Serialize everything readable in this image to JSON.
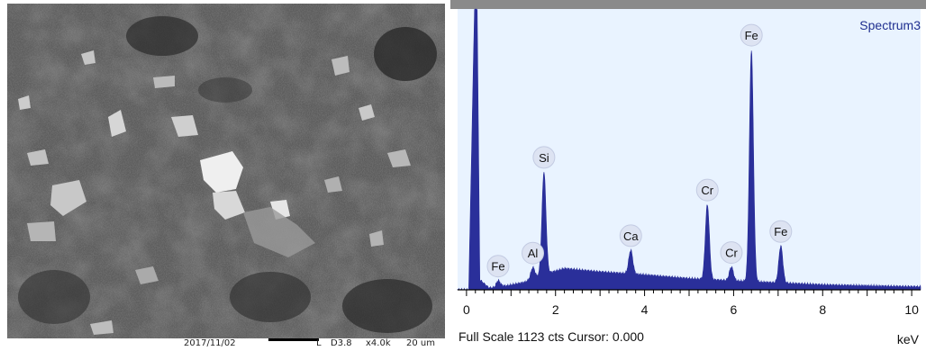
{
  "sem_image": {
    "footer": {
      "date": "2017/11/02",
      "mode": "L",
      "detector": "D3.8",
      "magnification": "x4.0k",
      "scale_label": "20 um"
    }
  },
  "chart_data": {
    "type": "area",
    "title": "Spectrum3",
    "status_text": "Full Scale 1123 cts Cursor: 0.000",
    "xlabel": "keV",
    "xlim": [
      -0.2,
      10.2
    ],
    "ylim": [
      0,
      1123
    ],
    "x_ticks": [
      0,
      2,
      4,
      6,
      8,
      10
    ],
    "fill_color": "#2a2f9a",
    "background_color": "#e9f3ff",
    "background": [
      {
        "x": -0.2,
        "y": 0
      },
      {
        "x": 0.05,
        "y": 0
      },
      {
        "x": 0.18,
        "y": 1123
      },
      {
        "x": 0.24,
        "y": 1123
      },
      {
        "x": 0.3,
        "y": 40
      },
      {
        "x": 0.5,
        "y": 8
      },
      {
        "x": 0.65,
        "y": 8
      },
      {
        "x": 0.7,
        "y": 15
      },
      {
        "x": 0.9,
        "y": 16
      },
      {
        "x": 1.3,
        "y": 30
      },
      {
        "x": 1.7,
        "y": 60
      },
      {
        "x": 2.2,
        "y": 85
      },
      {
        "x": 3.0,
        "y": 72
      },
      {
        "x": 4.0,
        "y": 60
      },
      {
        "x": 5.0,
        "y": 45
      },
      {
        "x": 6.0,
        "y": 36
      },
      {
        "x": 7.0,
        "y": 28
      },
      {
        "x": 8.0,
        "y": 20
      },
      {
        "x": 9.0,
        "y": 16
      },
      {
        "x": 10.2,
        "y": 12
      }
    ],
    "peaks": [
      {
        "element": "Fe",
        "x": 0.71,
        "y": 22
      },
      {
        "element": "Al",
        "x": 1.49,
        "y": 45
      },
      {
        "element": "Si",
        "x": 1.74,
        "y": 410
      },
      {
        "element": "Ca",
        "x": 3.69,
        "y": 95
      },
      {
        "element": "Cr",
        "x": 5.41,
        "y": 300
      },
      {
        "element": "Cr",
        "x": 5.95,
        "y": 55
      },
      {
        "element": "Fe",
        "x": 6.4,
        "y": 928
      },
      {
        "element": "Fe",
        "x": 7.06,
        "y": 148
      }
    ]
  }
}
